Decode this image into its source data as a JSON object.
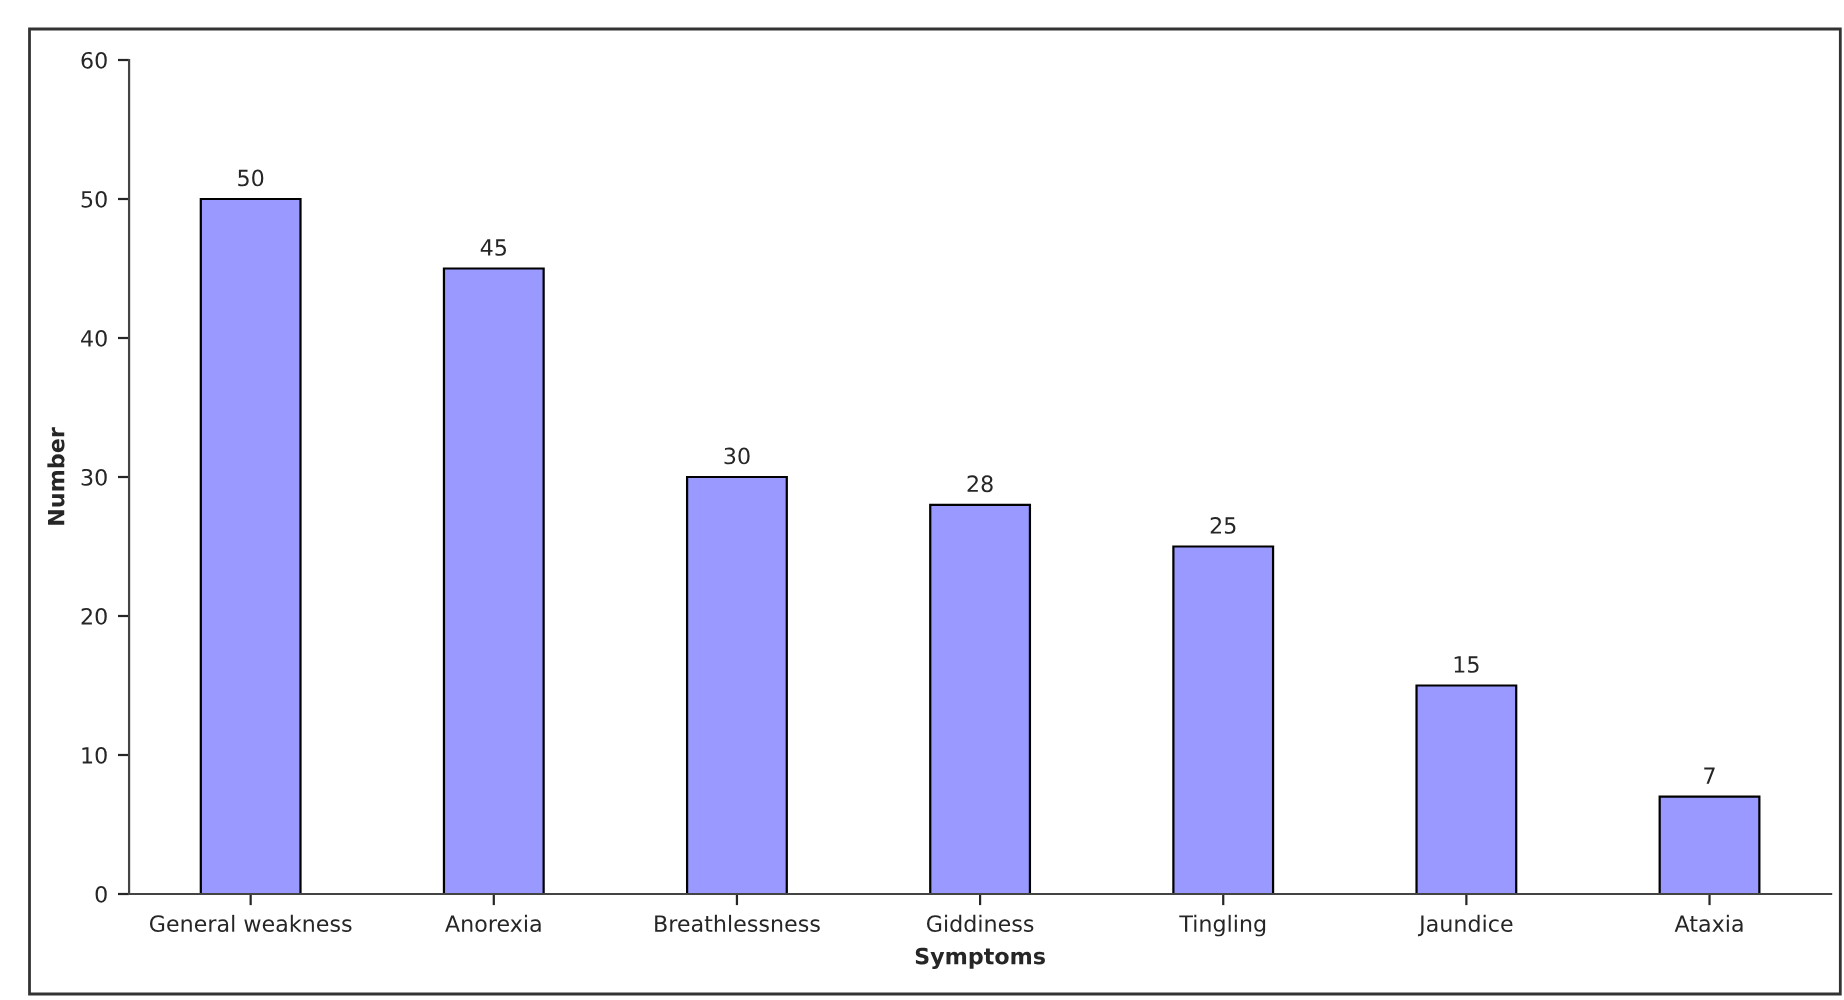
{
  "chart_data": {
    "type": "bar",
    "xlabel": "Symptoms",
    "ylabel": "Number",
    "categories": [
      "General weakness",
      "Anorexia",
      "Breathlessness",
      "Giddiness",
      "Tingling",
      "Jaundice",
      "Ataxia"
    ],
    "values": [
      50,
      45,
      30,
      28,
      25,
      15,
      7
    ],
    "color": "#9999ff",
    "ylim": [
      0,
      60
    ],
    "yticks": [
      0,
      10,
      20,
      30,
      40,
      50,
      60
    ],
    "grid": false,
    "data_labels": true
  }
}
